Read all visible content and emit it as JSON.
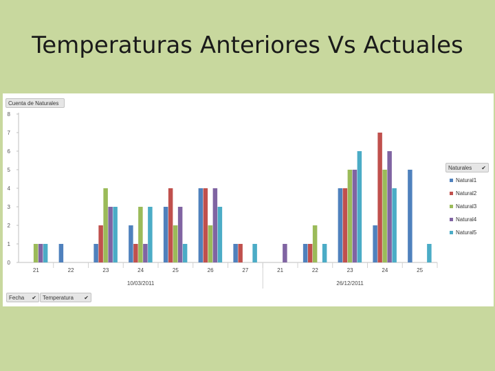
{
  "slide": {
    "title": "Temperaturas Anteriores Vs Actuales"
  },
  "buttons": {
    "values_field": "Cuenta de Naturales",
    "legend_field": "Naturales",
    "axis_field_1": "Fecha",
    "axis_field_2": "Temperatura"
  },
  "icons": {
    "filter": "filter-icon",
    "color": "#333333"
  },
  "chart_data": {
    "type": "bar",
    "title": "",
    "ylim": [
      0,
      8
    ],
    "yticks": [
      0,
      1,
      2,
      3,
      4,
      5,
      6,
      7,
      8
    ],
    "grid": false,
    "legend_position": "right",
    "groups": [
      {
        "label": "10/03/2011",
        "categories": [
          "21",
          "22",
          "23",
          "24",
          "25",
          "26",
          "27"
        ]
      },
      {
        "label": "26/12/2011",
        "categories": [
          "21",
          "22",
          "23",
          "24",
          "25"
        ]
      }
    ],
    "categories": [
      "21",
      "22",
      "23",
      "24",
      "25",
      "26",
      "27",
      "21",
      "22",
      "23",
      "24",
      "25"
    ],
    "series": [
      {
        "name": "Natural1",
        "color": "#4f81bd",
        "values": [
          0,
          1,
          1,
          2,
          3,
          4,
          1,
          0,
          1,
          4,
          2,
          5
        ]
      },
      {
        "name": "Natural2",
        "color": "#c0504d",
        "values": [
          0,
          0,
          2,
          1,
          4,
          4,
          1,
          0,
          1,
          4,
          7,
          0
        ]
      },
      {
        "name": "Natural3",
        "color": "#9bbb59",
        "values": [
          1,
          0,
          4,
          3,
          2,
          2,
          0,
          0,
          2,
          5,
          5,
          0
        ]
      },
      {
        "name": "Natural4",
        "color": "#8064a2",
        "values": [
          1,
          0,
          3,
          1,
          3,
          4,
          0,
          1,
          0,
          5,
          6,
          0
        ]
      },
      {
        "name": "Natural5",
        "color": "#4bacc6",
        "values": [
          1,
          0,
          3,
          3,
          1,
          3,
          1,
          0,
          1,
          6,
          4,
          1
        ]
      }
    ]
  }
}
